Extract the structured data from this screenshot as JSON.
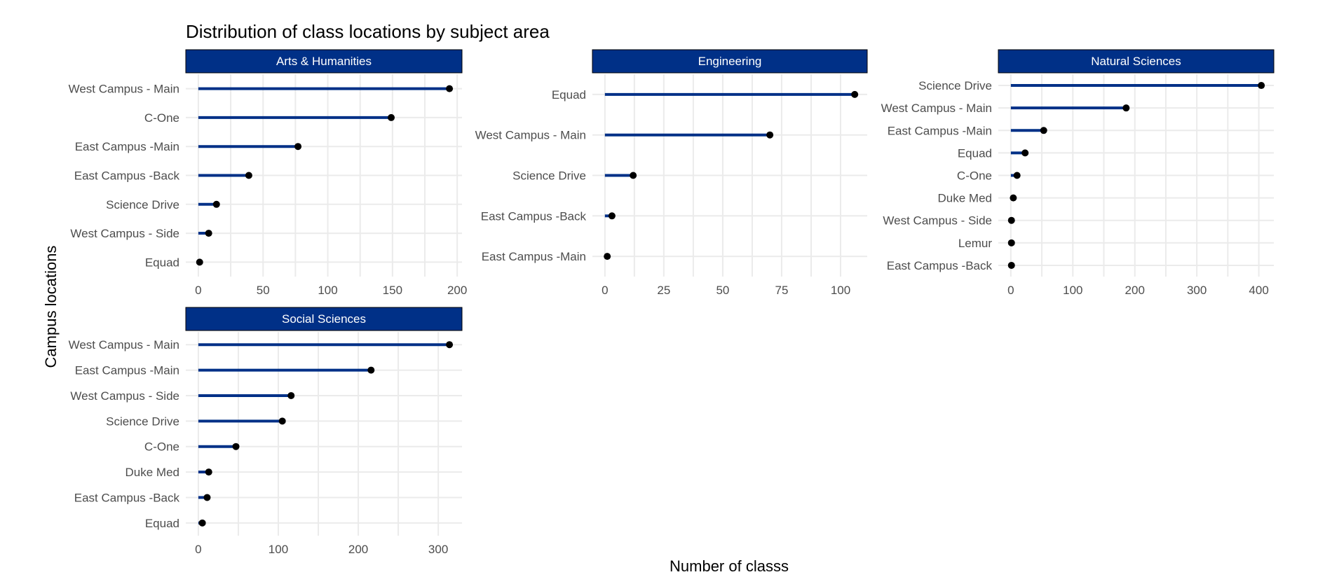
{
  "colors": {
    "strip_fill": "#003087",
    "strip_border": "#000000",
    "segment": "#003087",
    "point": "#000000",
    "grid": "#ebebeb"
  },
  "chart_data": {
    "type": "lollipop",
    "title": "Distribution of class locations by subject area",
    "xlabel": "Number of classs",
    "ylabel": "Campus locations",
    "grid": true,
    "legend": "none",
    "facets": [
      {
        "name": "Arts & Humanities",
        "xlim": [
          -9.7,
          203.7
        ],
        "xticks": [
          0,
          50,
          100,
          150,
          200
        ],
        "categories": [
          "West Campus - Main",
          "C-One",
          "East Campus -Main",
          "East Campus -Back",
          "Science Drive",
          "West Campus - Side",
          "Equad"
        ],
        "values": [
          194,
          149,
          77,
          39,
          14,
          8,
          1
        ]
      },
      {
        "name": "Engineering",
        "xlim": [
          -5.3,
          111.3
        ],
        "xticks": [
          0,
          25,
          50,
          75,
          100
        ],
        "categories": [
          "Equad",
          "West Campus - Main",
          "Science Drive",
          "East Campus -Back",
          "East Campus -Main"
        ],
        "values": [
          106,
          70,
          12,
          3,
          1
        ]
      },
      {
        "name": "Natural Sciences",
        "xlim": [
          -20.2,
          424.2
        ],
        "xticks": [
          0,
          100,
          200,
          300,
          400
        ],
        "categories": [
          "Science Drive",
          "West Campus - Main",
          "East Campus -Main",
          "Equad",
          "C-One",
          "Duke Med",
          "West Campus - Side",
          "Lemur",
          "East Campus -Back"
        ],
        "values": [
          404,
          186,
          53,
          23,
          10,
          4,
          1,
          1,
          1
        ]
      },
      {
        "name": "Social Sciences",
        "xlim": [
          -15.7,
          329.7
        ],
        "xticks": [
          0,
          100,
          200,
          300
        ],
        "categories": [
          "West Campus - Main",
          "East Campus -Main",
          "West Campus - Side",
          "Science Drive",
          "C-One",
          "Duke Med",
          "East Campus -Back",
          "Equad"
        ],
        "values": [
          314,
          216,
          116,
          105,
          47,
          13,
          11,
          5
        ]
      }
    ]
  }
}
